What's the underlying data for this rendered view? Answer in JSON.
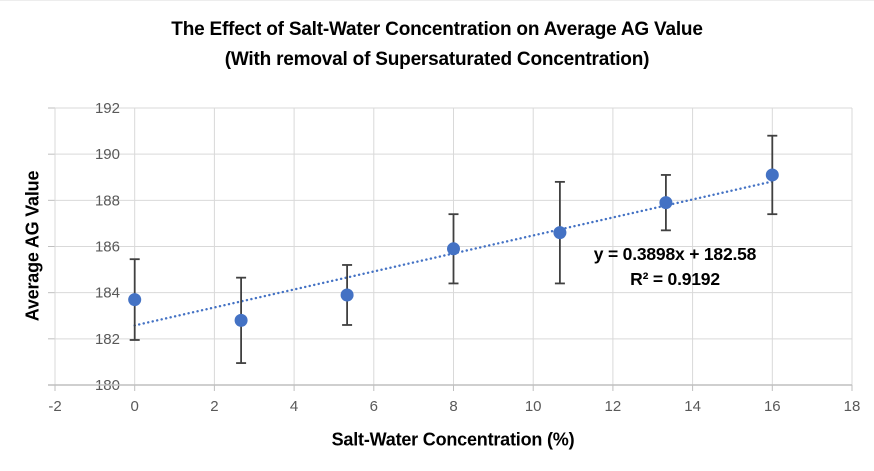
{
  "chart_data": {
    "type": "scatter",
    "title": "The Effect of Salt-Water Concentration on Average AG Value",
    "subtitle": "(With removal of Supersaturated Concentration)",
    "xlabel": "Salt-Water Concentration (%)",
    "ylabel": "Average AG Value",
    "xlim": [
      -2,
      18
    ],
    "ylim": [
      180,
      192
    ],
    "x_ticks": [
      -2,
      0,
      2,
      4,
      6,
      8,
      10,
      12,
      14,
      16,
      18
    ],
    "y_ticks": [
      180,
      182,
      184,
      186,
      188,
      190,
      192
    ],
    "grid": true,
    "legend": "none",
    "series": [
      {
        "name": "Average AG Value",
        "marker": "circle",
        "x": [
          0,
          2.67,
          5.33,
          8,
          10.67,
          13.33,
          16
        ],
        "y": [
          183.7,
          182.8,
          183.9,
          185.9,
          186.6,
          187.9,
          189.1
        ],
        "error": [
          1.75,
          1.85,
          1.3,
          1.5,
          2.2,
          1.2,
          1.7
        ]
      }
    ],
    "trendline": {
      "style": "dotted",
      "slope": 0.3898,
      "intercept": 182.58,
      "x_start": 0,
      "x_end": 16,
      "equation_label": "y = 0.3898x + 182.58",
      "r_squared_label": "R² = 0.9192"
    },
    "colors": {
      "point": "#4472C4",
      "trendline": "#4472C4",
      "error_bar": "#404040",
      "gridline": "#D9D9D9",
      "axis_line": "#BFBFBF",
      "tick_label": "#595959",
      "text": "#000000"
    }
  }
}
